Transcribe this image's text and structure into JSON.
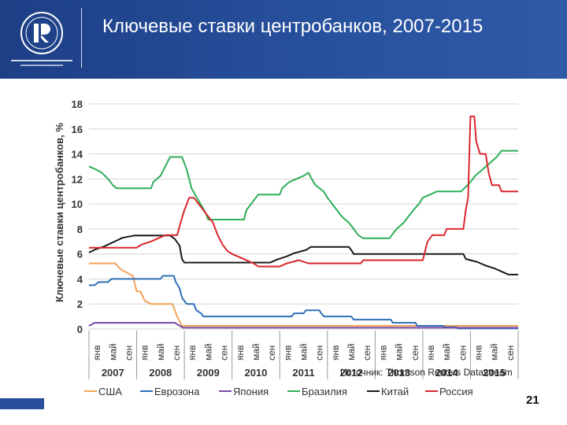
{
  "header": {
    "title": "Ключевые ставки центробанков, 2007-2015",
    "logo_icon": "hse-university-logo-icon",
    "colors": {
      "header_blue": "#27509c"
    }
  },
  "source_text": "Источник: Thomson Reuters Datastream",
  "page_number": "21",
  "chart_data": {
    "type": "line",
    "ylabel": "Ключевые ставки центробанков, %",
    "ylim": [
      0,
      18
    ],
    "yticks": [
      0,
      2,
      4,
      6,
      8,
      10,
      12,
      14,
      16,
      18
    ],
    "month_labels": [
      "янв",
      "май",
      "сен",
      "янв",
      "май",
      "сен",
      "янв",
      "май",
      "сен",
      "янв",
      "май",
      "сен",
      "янв",
      "май",
      "сен",
      "янв",
      "май",
      "сен",
      "янв",
      "май",
      "сен",
      "янв",
      "май",
      "сен",
      "янв",
      "май",
      "сен"
    ],
    "year_labels": [
      "2007",
      "2008",
      "2009",
      "2010",
      "2011",
      "2012",
      "2013",
      "2014",
      "2015"
    ],
    "xlim": [
      2007.0,
      2016.0
    ],
    "legend_position": "bottom",
    "series": [
      {
        "name": "США",
        "color": "#f0a35a",
        "points": [
          [
            2007.0,
            5.25
          ],
          [
            2007.55,
            5.25
          ],
          [
            2007.67,
            4.75
          ],
          [
            2007.8,
            4.5
          ],
          [
            2007.92,
            4.25
          ],
          [
            2008.0,
            3.0
          ],
          [
            2008.08,
            3.0
          ],
          [
            2008.17,
            2.25
          ],
          [
            2008.3,
            2.0
          ],
          [
            2008.75,
            2.0
          ],
          [
            2008.8,
            1.5
          ],
          [
            2008.85,
            1.0
          ],
          [
            2008.95,
            0.25
          ],
          [
            2016.0,
            0.25
          ]
        ]
      },
      {
        "name": "Еврозона",
        "color": "#2e6fb8",
        "points": [
          [
            2007.0,
            3.5
          ],
          [
            2007.12,
            3.5
          ],
          [
            2007.2,
            3.75
          ],
          [
            2007.4,
            3.75
          ],
          [
            2007.47,
            4.0
          ],
          [
            2008.5,
            4.0
          ],
          [
            2008.55,
            4.25
          ],
          [
            2008.78,
            4.25
          ],
          [
            2008.82,
            3.75
          ],
          [
            2008.9,
            3.25
          ],
          [
            2008.95,
            2.5
          ],
          [
            2009.05,
            2.0
          ],
          [
            2009.2,
            2.0
          ],
          [
            2009.25,
            1.5
          ],
          [
            2009.35,
            1.25
          ],
          [
            2009.4,
            1.0
          ],
          [
            2011.25,
            1.0
          ],
          [
            2011.3,
            1.25
          ],
          [
            2011.5,
            1.25
          ],
          [
            2011.55,
            1.5
          ],
          [
            2011.83,
            1.5
          ],
          [
            2011.87,
            1.25
          ],
          [
            2011.93,
            1.0
          ],
          [
            2012.5,
            1.0
          ],
          [
            2012.55,
            0.75
          ],
          [
            2013.33,
            0.75
          ],
          [
            2013.37,
            0.5
          ],
          [
            2013.85,
            0.5
          ],
          [
            2013.88,
            0.25
          ],
          [
            2014.42,
            0.25
          ],
          [
            2014.46,
            0.15
          ],
          [
            2014.7,
            0.15
          ],
          [
            2014.73,
            0.05
          ],
          [
            2016.0,
            0.05
          ]
        ]
      },
      {
        "name": "Япония",
        "color": "#7a4aa8",
        "points": [
          [
            2007.0,
            0.25
          ],
          [
            2007.12,
            0.5
          ],
          [
            2008.8,
            0.5
          ],
          [
            2008.88,
            0.3
          ],
          [
            2008.97,
            0.1
          ],
          [
            2016.0,
            0.1
          ]
        ]
      },
      {
        "name": "Бразилия",
        "color": "#2fae5a",
        "points": [
          [
            2007.0,
            13.0
          ],
          [
            2007.15,
            12.75
          ],
          [
            2007.27,
            12.5
          ],
          [
            2007.4,
            12.0
          ],
          [
            2007.5,
            11.5
          ],
          [
            2007.58,
            11.25
          ],
          [
            2008.3,
            11.25
          ],
          [
            2008.35,
            11.75
          ],
          [
            2008.5,
            12.25
          ],
          [
            2008.6,
            13.0
          ],
          [
            2008.7,
            13.75
          ],
          [
            2008.95,
            13.75
          ],
          [
            2009.05,
            12.75
          ],
          [
            2009.15,
            11.25
          ],
          [
            2009.3,
            10.25
          ],
          [
            2009.45,
            9.25
          ],
          [
            2009.5,
            8.75
          ],
          [
            2010.25,
            8.75
          ],
          [
            2010.3,
            9.5
          ],
          [
            2010.45,
            10.25
          ],
          [
            2010.55,
            10.75
          ],
          [
            2011.0,
            10.75
          ],
          [
            2011.05,
            11.25
          ],
          [
            2011.2,
            11.75
          ],
          [
            2011.35,
            12.0
          ],
          [
            2011.5,
            12.25
          ],
          [
            2011.6,
            12.5
          ],
          [
            2011.67,
            12.0
          ],
          [
            2011.75,
            11.5
          ],
          [
            2011.92,
            11.0
          ],
          [
            2012.0,
            10.5
          ],
          [
            2012.15,
            9.75
          ],
          [
            2012.3,
            9.0
          ],
          [
            2012.45,
            8.5
          ],
          [
            2012.55,
            8.0
          ],
          [
            2012.65,
            7.5
          ],
          [
            2012.75,
            7.25
          ],
          [
            2013.3,
            7.25
          ],
          [
            2013.35,
            7.5
          ],
          [
            2013.45,
            8.0
          ],
          [
            2013.6,
            8.5
          ],
          [
            2013.7,
            9.0
          ],
          [
            2013.8,
            9.5
          ],
          [
            2013.92,
            10.0
          ],
          [
            2014.0,
            10.5
          ],
          [
            2014.15,
            10.75
          ],
          [
            2014.3,
            11.0
          ],
          [
            2014.8,
            11.0
          ],
          [
            2014.87,
            11.25
          ],
          [
            2015.0,
            11.75
          ],
          [
            2015.1,
            12.25
          ],
          [
            2015.25,
            12.75
          ],
          [
            2015.4,
            13.25
          ],
          [
            2015.55,
            13.75
          ],
          [
            2015.65,
            14.25
          ],
          [
            2016.0,
            14.25
          ]
        ]
      },
      {
        "name": "Китай",
        "color": "#1a1a1a",
        "points": [
          [
            2007.0,
            6.12
          ],
          [
            2007.15,
            6.39
          ],
          [
            2007.3,
            6.57
          ],
          [
            2007.45,
            6.84
          ],
          [
            2007.55,
            7.02
          ],
          [
            2007.7,
            7.29
          ],
          [
            2007.95,
            7.47
          ],
          [
            2008.7,
            7.47
          ],
          [
            2008.8,
            7.2
          ],
          [
            2008.85,
            6.93
          ],
          [
            2008.9,
            6.66
          ],
          [
            2008.95,
            5.58
          ],
          [
            2009.0,
            5.31
          ],
          [
            2010.8,
            5.31
          ],
          [
            2010.95,
            5.56
          ],
          [
            2011.15,
            5.81
          ],
          [
            2011.3,
            6.06
          ],
          [
            2011.55,
            6.31
          ],
          [
            2011.65,
            6.56
          ],
          [
            2012.45,
            6.56
          ],
          [
            2012.5,
            6.31
          ],
          [
            2012.55,
            6.0
          ],
          [
            2014.85,
            6.0
          ],
          [
            2014.9,
            5.6
          ],
          [
            2015.15,
            5.35
          ],
          [
            2015.3,
            5.1
          ],
          [
            2015.5,
            4.85
          ],
          [
            2015.65,
            4.6
          ],
          [
            2015.8,
            4.35
          ],
          [
            2016.0,
            4.35
          ]
        ]
      },
      {
        "name": "Россия",
        "color": "#d9262c",
        "points": [
          [
            2007.0,
            6.5
          ],
          [
            2007.3,
            6.5
          ],
          [
            2007.4,
            6.5
          ],
          [
            2008.0,
            6.5
          ],
          [
            2008.1,
            6.75
          ],
          [
            2008.3,
            7.0
          ],
          [
            2008.45,
            7.25
          ],
          [
            2008.6,
            7.5
          ],
          [
            2008.85,
            7.5
          ],
          [
            2008.92,
            8.5
          ],
          [
            2009.0,
            9.5
          ],
          [
            2009.1,
            10.5
          ],
          [
            2009.2,
            10.5
          ],
          [
            2009.3,
            10.0
          ],
          [
            2009.4,
            9.5
          ],
          [
            2009.5,
            9.0
          ],
          [
            2009.6,
            8.5
          ],
          [
            2009.7,
            7.5
          ],
          [
            2009.8,
            6.75
          ],
          [
            2009.9,
            6.25
          ],
          [
            2010.0,
            6.0
          ],
          [
            2010.15,
            5.75
          ],
          [
            2010.3,
            5.5
          ],
          [
            2010.45,
            5.25
          ],
          [
            2010.55,
            5.0
          ],
          [
            2011.0,
            5.0
          ],
          [
            2011.15,
            5.25
          ],
          [
            2011.4,
            5.5
          ],
          [
            2011.6,
            5.25
          ],
          [
            2012.7,
            5.25
          ],
          [
            2012.75,
            5.5
          ],
          [
            2014.0,
            5.5
          ],
          [
            2014.1,
            7.0
          ],
          [
            2014.2,
            7.5
          ],
          [
            2014.45,
            7.5
          ],
          [
            2014.5,
            8.0
          ],
          [
            2014.85,
            8.0
          ],
          [
            2014.9,
            9.5
          ],
          [
            2014.95,
            10.5
          ],
          [
            2015.0,
            17.0
          ],
          [
            2015.08,
            17.0
          ],
          [
            2015.12,
            15.0
          ],
          [
            2015.2,
            14.0
          ],
          [
            2015.32,
            14.0
          ],
          [
            2015.38,
            12.5
          ],
          [
            2015.45,
            11.5
          ],
          [
            2015.6,
            11.5
          ],
          [
            2015.65,
            11.0
          ],
          [
            2016.0,
            11.0
          ]
        ]
      }
    ]
  }
}
